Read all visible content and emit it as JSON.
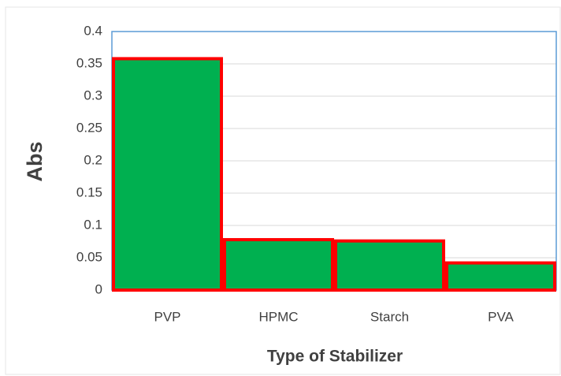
{
  "chart_data": {
    "type": "bar",
    "categories": [
      "PVP",
      "HPMC",
      "Starch",
      "PVA"
    ],
    "values": [
      0.358,
      0.078,
      0.076,
      0.042
    ],
    "color": "#00b050",
    "edge_color": "#ff0000",
    "ylabel": "Abs",
    "xlabel": "Type of Stabilizer",
    "ylim": [
      0,
      0.4
    ],
    "yticks": [
      0,
      0.05,
      0.1,
      0.15,
      0.2,
      0.25,
      0.3,
      0.35,
      0.4
    ],
    "grid": true
  }
}
